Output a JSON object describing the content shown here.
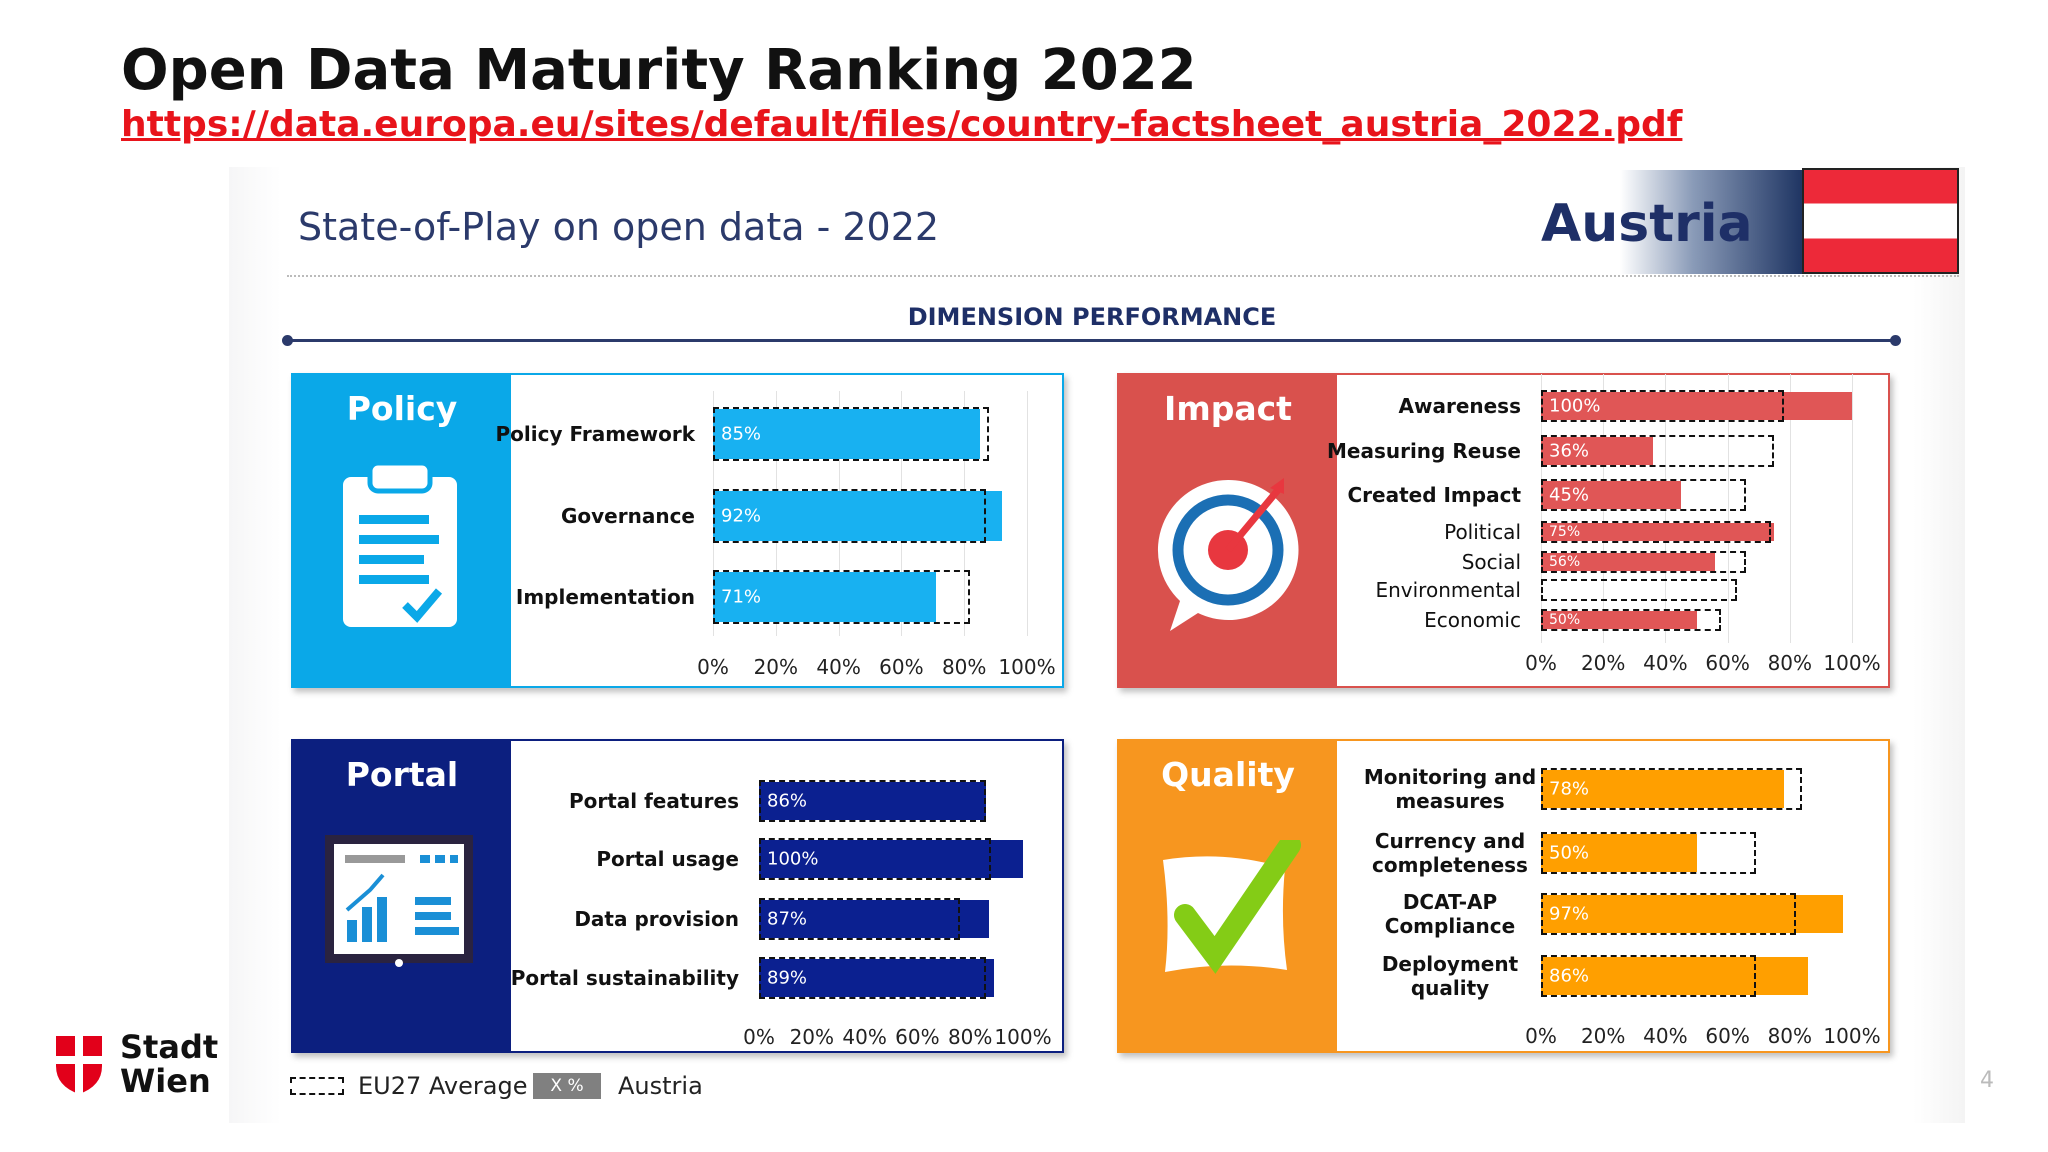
{
  "header": {
    "title": "Open Data Maturity Ranking 2022",
    "url": "https://data.europa.eu/sites/default/files/country-factsheet_austria_2022.pdf",
    "slide_title": "State-of-Play on open data - 2022",
    "country": "Austria",
    "section": "DIMENSION PERFORMANCE",
    "page_number": 4
  },
  "logo": {
    "line1": "Stadt",
    "line2": "Wien"
  },
  "legend": {
    "sample_label": "X %"
  },
  "chart_data": [
    {
      "type": "bar",
      "orientation": "horizontal",
      "title": "Policy",
      "color": "#0aa8e8",
      "grid": true,
      "categories": [
        "Policy Framework",
        "Governance",
        "Implementation"
      ],
      "series": [
        {
          "name": "Austria",
          "color": "#18b1f1",
          "values": [
            85,
            92,
            71
          ],
          "value_labels": [
            "85%",
            "92%",
            "71%"
          ]
        },
        {
          "name": "EU27 Average",
          "color": "#111111",
          "style": "dashed",
          "values": [
            88,
            87,
            82
          ]
        }
      ],
      "xlim": [
        0,
        100
      ],
      "xticks": [
        {
          "value": 0,
          "label": "0%"
        },
        {
          "value": 20,
          "label": "20%"
        },
        {
          "value": 40,
          "label": "40%"
        },
        {
          "value": 60,
          "label": "60%"
        },
        {
          "value": 80,
          "label": "80%"
        },
        {
          "value": 100,
          "label": "100%"
        }
      ]
    },
    {
      "type": "bar",
      "orientation": "horizontal",
      "title": "Impact",
      "color": "#d9514d",
      "grid": true,
      "categories": [
        "Awareness",
        "Measuring Reuse",
        "Created Impact",
        "Political",
        "Social",
        "Environmental",
        "Economic"
      ],
      "series": [
        {
          "name": "Austria",
          "color": "#e05656",
          "values": [
            100,
            36,
            45,
            75,
            56,
            null,
            50
          ],
          "value_labels": [
            "100%",
            "36%",
            "45%",
            "75%",
            "56%",
            null,
            "50%"
          ]
        },
        {
          "name": "EU27 Average",
          "color": "#111111",
          "style": "dashed",
          "values": [
            78,
            75,
            66,
            74,
            66,
            63,
            58
          ]
        }
      ],
      "xlim": [
        0,
        100
      ],
      "xticks": [
        {
          "value": 0,
          "label": "0%"
        },
        {
          "value": 20,
          "label": "20%"
        },
        {
          "value": 40,
          "label": "40%"
        },
        {
          "value": 60,
          "label": "60%"
        },
        {
          "value": 80,
          "label": "80%"
        },
        {
          "value": 100,
          "label": "100%"
        }
      ]
    },
    {
      "type": "bar",
      "orientation": "horizontal",
      "title": "Portal",
      "color": "#0c1f7f",
      "grid": false,
      "categories": [
        "Portal features",
        "Portal usage",
        "Data provision",
        "Portal sustainability"
      ],
      "series": [
        {
          "name": "Austria",
          "color": "#0b2090",
          "values": [
            86,
            100,
            87,
            89
          ],
          "value_labels": [
            "86%",
            "100%",
            "87%",
            "89%"
          ]
        },
        {
          "name": "EU27 Average",
          "color": "#111111",
          "style": "dashed",
          "values": [
            86,
            88,
            76,
            86
          ]
        }
      ],
      "xlim": [
        0,
        100
      ],
      "xticks": [
        {
          "value": 0,
          "label": "0%"
        },
        {
          "value": 20,
          "label": "20%"
        },
        {
          "value": 40,
          "label": "40%"
        },
        {
          "value": 60,
          "label": "60%"
        },
        {
          "value": 80,
          "label": "80%"
        },
        {
          "value": 100,
          "label": "100%"
        }
      ]
    },
    {
      "type": "bar",
      "orientation": "horizontal",
      "title": "Quality",
      "color": "#f7961f",
      "grid": false,
      "categories": [
        "Monitoring and measures",
        "Currency and completeness",
        "DCAT-AP Compliance",
        "Deployment quality"
      ],
      "series": [
        {
          "name": "Austria",
          "color": "#ff9f00",
          "values": [
            78,
            50,
            97,
            86
          ],
          "value_labels": [
            "78%",
            "50%",
            "97%",
            "86%"
          ]
        },
        {
          "name": "EU27 Average",
          "color": "#111111",
          "style": "dashed",
          "values": [
            84,
            69,
            82,
            69
          ]
        }
      ],
      "xlim": [
        0,
        100
      ],
      "xticks": [
        {
          "value": 0,
          "label": "0%"
        },
        {
          "value": 20,
          "label": "20%"
        },
        {
          "value": 40,
          "label": "40%"
        },
        {
          "value": 60,
          "label": "60%"
        },
        {
          "value": 80,
          "label": "80%"
        },
        {
          "value": 100,
          "label": "100%"
        }
      ]
    }
  ]
}
